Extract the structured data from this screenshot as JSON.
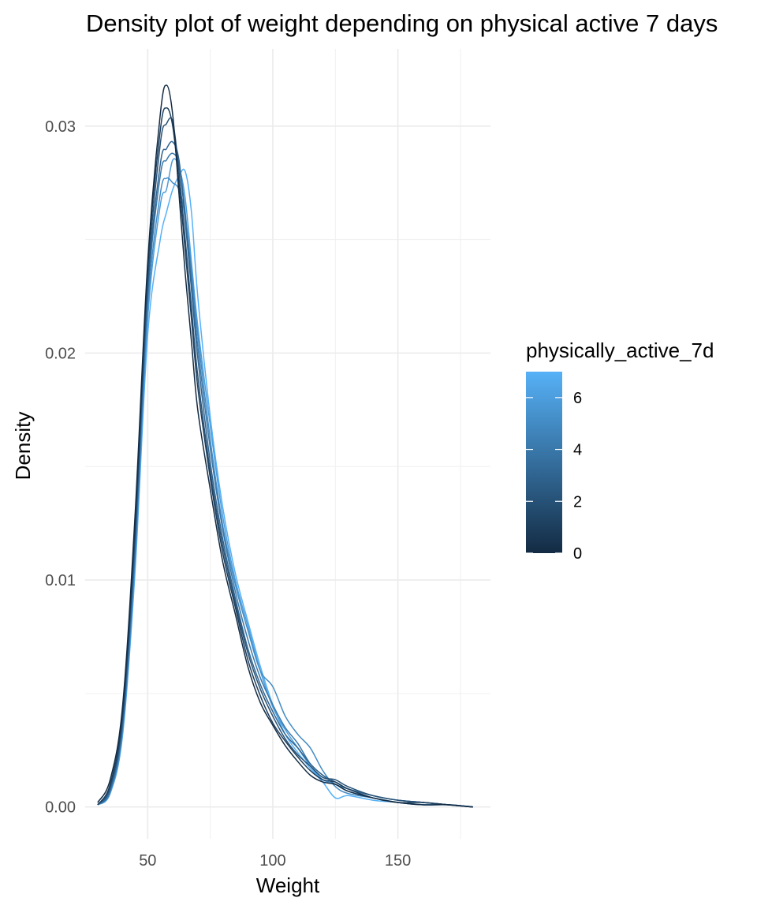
{
  "chart_data": {
    "type": "line",
    "title": "Density plot of weight depending on physical active 7 days",
    "xlabel": "Weight",
    "ylabel": "Density",
    "xlim": [
      25,
      187
    ],
    "ylim": [
      -0.0014,
      0.0334
    ],
    "x_ticks": [
      50,
      100,
      150
    ],
    "x_tick_labels": [
      "50",
      "100",
      "150"
    ],
    "y_ticks": [
      0.0,
      0.01,
      0.02,
      0.03
    ],
    "y_tick_labels": [
      "0.00",
      "0.01",
      "0.02",
      "0.03"
    ],
    "grid": true,
    "legend": {
      "title": "physically_active_7d",
      "position": "right",
      "type": "colorbar",
      "range": [
        0,
        7
      ],
      "ticks": [
        0,
        2,
        4,
        6
      ],
      "tick_labels": [
        "0",
        "2",
        "4",
        "6"
      ],
      "low_color": "#132b43",
      "high_color": "#56b1f7"
    },
    "x": [
      30,
      35,
      40,
      45,
      50,
      55,
      57.5,
      60,
      62.5,
      65,
      67.5,
      70,
      75,
      80,
      85,
      90,
      95,
      100,
      105,
      110,
      115,
      120,
      125,
      130,
      140,
      150,
      160,
      170,
      180
    ],
    "series": [
      {
        "value": 0,
        "y": [
          0.0002,
          0.0012,
          0.0045,
          0.013,
          0.024,
          0.0305,
          0.0318,
          0.0305,
          0.027,
          0.0235,
          0.0205,
          0.0175,
          0.014,
          0.0108,
          0.0085,
          0.0062,
          0.0046,
          0.0036,
          0.0027,
          0.002,
          0.0014,
          0.0011,
          0.001,
          0.0007,
          0.0004,
          0.0002,
          0.0001,
          0.0001,
          0.0
        ]
      },
      {
        "value": 1,
        "y": [
          0.0001,
          0.001,
          0.0042,
          0.0125,
          0.0238,
          0.0298,
          0.0308,
          0.03,
          0.0275,
          0.0245,
          0.0215,
          0.0185,
          0.0145,
          0.0112,
          0.0088,
          0.0065,
          0.0049,
          0.0037,
          0.0029,
          0.0022,
          0.0016,
          0.0012,
          0.0011,
          0.0008,
          0.0004,
          0.0002,
          0.0002,
          0.0001,
          0.0
        ]
      },
      {
        "value": 2,
        "y": [
          0.0001,
          0.0009,
          0.004,
          0.0122,
          0.0232,
          0.0292,
          0.0301,
          0.0302,
          0.028,
          0.025,
          0.022,
          0.019,
          0.0148,
          0.0115,
          0.009,
          0.0068,
          0.0052,
          0.004,
          0.003,
          0.0023,
          0.0018,
          0.0013,
          0.0012,
          0.0009,
          0.0005,
          0.0003,
          0.0002,
          0.0001,
          0.0
        ]
      },
      {
        "value": 3,
        "y": [
          0.0001,
          0.0008,
          0.0038,
          0.0118,
          0.0228,
          0.0283,
          0.029,
          0.0293,
          0.0285,
          0.0258,
          0.0228,
          0.0198,
          0.0152,
          0.0118,
          0.0092,
          0.007,
          0.0054,
          0.0042,
          0.0032,
          0.0026,
          0.0019,
          0.0014,
          0.0011,
          0.0008,
          0.0005,
          0.0003,
          0.0002,
          0.0001,
          0.0
        ]
      },
      {
        "value": 4,
        "y": [
          0.0001,
          0.0007,
          0.0036,
          0.0115,
          0.0225,
          0.0278,
          0.0285,
          0.0288,
          0.0283,
          0.0262,
          0.0232,
          0.0203,
          0.0158,
          0.0122,
          0.0095,
          0.0074,
          0.0057,
          0.0045,
          0.0035,
          0.0028,
          0.0019,
          0.0014,
          0.001,
          0.0008,
          0.0005,
          0.0003,
          0.0002,
          0.0001,
          0.0
        ]
      },
      {
        "value": 5,
        "y": [
          0.0001,
          0.0007,
          0.0035,
          0.0112,
          0.022,
          0.027,
          0.0277,
          0.0275,
          0.0272,
          0.026,
          0.0236,
          0.0208,
          0.0162,
          0.0124,
          0.0098,
          0.0078,
          0.006,
          0.0053,
          0.004,
          0.0032,
          0.0026,
          0.0016,
          0.0009,
          0.0006,
          0.0004,
          0.0002,
          0.0001,
          0.0001,
          0.0
        ]
      },
      {
        "value": 6,
        "y": [
          0.0001,
          0.0006,
          0.0033,
          0.0108,
          0.0215,
          0.0265,
          0.0272,
          0.0285,
          0.0282,
          0.0268,
          0.024,
          0.0212,
          0.0168,
          0.0128,
          0.01,
          0.008,
          0.006,
          0.0044,
          0.0034,
          0.0026,
          0.0018,
          0.0012,
          0.001,
          0.0007,
          0.0004,
          0.0002,
          0.0001,
          0.0001,
          0.0
        ]
      },
      {
        "value": 7,
        "y": [
          0.0001,
          0.0006,
          0.0032,
          0.0105,
          0.0208,
          0.025,
          0.0262,
          0.0272,
          0.0278,
          0.028,
          0.0262,
          0.0225,
          0.0172,
          0.0132,
          0.0103,
          0.0082,
          0.0062,
          0.0045,
          0.0032,
          0.0024,
          0.0017,
          0.0011,
          0.0004,
          0.0005,
          0.0003,
          0.0002,
          0.0001,
          0.0001,
          0.0
        ]
      }
    ]
  }
}
